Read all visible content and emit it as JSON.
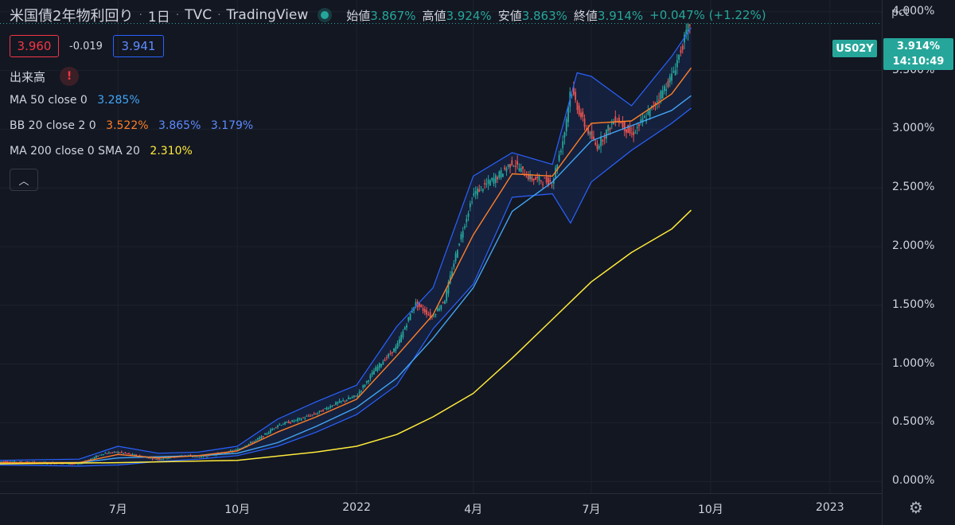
{
  "header": {
    "symbol_name": "米国債2年物利回り",
    "interval": "1日",
    "exchange": "TVC",
    "source": "TradingView",
    "ohlc": [
      {
        "label": "始値",
        "value": "3.867%"
      },
      {
        "label": "高値",
        "value": "3.924%"
      },
      {
        "label": "安値",
        "value": "3.863%"
      },
      {
        "label": "終値",
        "value": "3.914%"
      }
    ],
    "change": "+0.047% (+1.22%)"
  },
  "trade": {
    "sell": "3.960",
    "spread": "-0.019",
    "buy": "3.941"
  },
  "volume_label": "出来高",
  "volume_warning": "!",
  "indicators": [
    {
      "label": "MA 50 close 0",
      "values": [
        "3.285%"
      ],
      "colors": [
        "#42a5f5"
      ]
    },
    {
      "label": "BB 20 close 2 0",
      "values": [
        "3.522%",
        "3.865%",
        "3.179%"
      ],
      "colors": [
        "#ff7f27",
        "#2962ff",
        "#448aff"
      ]
    },
    {
      "label": "MA 200 close 0 SMA 20",
      "values": [
        "2.310%"
      ],
      "colors": [
        "#ffeb3b"
      ]
    }
  ],
  "collapse_icon": "chevron-up-icon",
  "axis_unit": "pct",
  "price_tag": {
    "symbol": "US02Y",
    "price": "3.914%",
    "countdown": "14:10:49"
  },
  "settings_icon": "gear-icon",
  "colors": {
    "background": "#131722",
    "up": "#26a69a",
    "down": "#ef5350",
    "ma50": "#42a5f5",
    "bb_basis": "#ff7f27",
    "bb_band": "#2962ff",
    "ma200": "#ffeb3b"
  },
  "chart_data": {
    "type": "line",
    "y_unit": "%",
    "ylim": [
      -0.1,
      4.1
    ],
    "y_ticks": [
      0.0,
      0.5,
      1.0,
      1.5,
      2.0,
      2.5,
      3.0,
      3.5,
      4.0
    ],
    "y_tick_labels": [
      "0.000%",
      "0.500%",
      "1.000%",
      "1.500%",
      "2.000%",
      "2.500%",
      "3.000%",
      "3.500%",
      "4.000%"
    ],
    "x_range": [
      "2021-04-01",
      "2023-02-10"
    ],
    "x_ticks": [
      {
        "date": "2021-07-01",
        "label": "7月"
      },
      {
        "date": "2021-10-01",
        "label": "10月"
      },
      {
        "date": "2022-01-01",
        "label": "2022"
      },
      {
        "date": "2022-04-01",
        "label": "4月"
      },
      {
        "date": "2022-07-01",
        "label": "7月"
      },
      {
        "date": "2022-10-01",
        "label": "10月"
      },
      {
        "date": "2023-01-01",
        "label": "2023"
      }
    ],
    "grid": true,
    "series": [
      {
        "name": "US02Y",
        "style": "candlestick",
        "points": [
          [
            "2021-04-01",
            0.17
          ],
          [
            "2021-05-01",
            0.16
          ],
          [
            "2021-06-01",
            0.15
          ],
          [
            "2021-06-20",
            0.24
          ],
          [
            "2021-07-01",
            0.25
          ],
          [
            "2021-07-20",
            0.21
          ],
          [
            "2021-08-01",
            0.19
          ],
          [
            "2021-08-20",
            0.22
          ],
          [
            "2021-09-01",
            0.21
          ],
          [
            "2021-09-20",
            0.24
          ],
          [
            "2021-10-01",
            0.27
          ],
          [
            "2021-10-20",
            0.38
          ],
          [
            "2021-11-01",
            0.48
          ],
          [
            "2021-11-15",
            0.52
          ],
          [
            "2021-12-01",
            0.58
          ],
          [
            "2021-12-15",
            0.66
          ],
          [
            "2022-01-01",
            0.73
          ],
          [
            "2022-01-15",
            0.95
          ],
          [
            "2022-02-01",
            1.15
          ],
          [
            "2022-02-15",
            1.52
          ],
          [
            "2022-02-28",
            1.4
          ],
          [
            "2022-03-10",
            1.55
          ],
          [
            "2022-03-20",
            2.0
          ],
          [
            "2022-04-01",
            2.45
          ],
          [
            "2022-04-20",
            2.6
          ],
          [
            "2022-05-01",
            2.72
          ],
          [
            "2022-05-15",
            2.58
          ],
          [
            "2022-06-01",
            2.55
          ],
          [
            "2022-06-10",
            2.95
          ],
          [
            "2022-06-15",
            3.35
          ],
          [
            "2022-06-25",
            3.05
          ],
          [
            "2022-07-05",
            2.85
          ],
          [
            "2022-07-20",
            3.1
          ],
          [
            "2022-08-01",
            2.95
          ],
          [
            "2022-08-15",
            3.15
          ],
          [
            "2022-09-01",
            3.45
          ],
          [
            "2022-09-15",
            3.9
          ]
        ]
      },
      {
        "name": "MA 50",
        "points": [
          [
            "2021-04-01",
            0.16
          ],
          [
            "2021-06-01",
            0.16
          ],
          [
            "2021-07-01",
            0.2
          ],
          [
            "2021-08-01",
            0.21
          ],
          [
            "2021-09-01",
            0.22
          ],
          [
            "2021-10-01",
            0.24
          ],
          [
            "2021-11-01",
            0.33
          ],
          [
            "2021-12-01",
            0.47
          ],
          [
            "2022-01-01",
            0.63
          ],
          [
            "2022-02-01",
            0.88
          ],
          [
            "2022-03-01",
            1.22
          ],
          [
            "2022-04-01",
            1.65
          ],
          [
            "2022-05-01",
            2.3
          ],
          [
            "2022-06-01",
            2.55
          ],
          [
            "2022-07-01",
            2.9
          ],
          [
            "2022-08-01",
            3.03
          ],
          [
            "2022-09-01",
            3.16
          ],
          [
            "2022-09-16",
            3.285
          ]
        ]
      },
      {
        "name": "BB basis",
        "points": [
          [
            "2021-04-01",
            0.16
          ],
          [
            "2021-06-01",
            0.16
          ],
          [
            "2021-07-01",
            0.23
          ],
          [
            "2021-08-01",
            0.2
          ],
          [
            "2021-09-01",
            0.22
          ],
          [
            "2021-10-01",
            0.26
          ],
          [
            "2021-11-01",
            0.42
          ],
          [
            "2021-12-01",
            0.55
          ],
          [
            "2022-01-01",
            0.7
          ],
          [
            "2022-02-01",
            1.07
          ],
          [
            "2022-03-01",
            1.42
          ],
          [
            "2022-04-01",
            2.1
          ],
          [
            "2022-05-01",
            2.62
          ],
          [
            "2022-06-01",
            2.6
          ],
          [
            "2022-07-01",
            3.05
          ],
          [
            "2022-08-01",
            3.07
          ],
          [
            "2022-09-01",
            3.3
          ],
          [
            "2022-09-16",
            3.522
          ]
        ]
      },
      {
        "name": "BB upper",
        "points": [
          [
            "2021-04-01",
            0.18
          ],
          [
            "2021-06-01",
            0.19
          ],
          [
            "2021-07-01",
            0.3
          ],
          [
            "2021-08-01",
            0.24
          ],
          [
            "2021-09-01",
            0.25
          ],
          [
            "2021-10-01",
            0.3
          ],
          [
            "2021-11-01",
            0.53
          ],
          [
            "2021-12-01",
            0.68
          ],
          [
            "2022-01-01",
            0.82
          ],
          [
            "2022-02-01",
            1.32
          ],
          [
            "2022-03-01",
            1.65
          ],
          [
            "2022-04-01",
            2.6
          ],
          [
            "2022-05-01",
            2.8
          ],
          [
            "2022-06-01",
            2.7
          ],
          [
            "2022-06-20",
            3.48
          ],
          [
            "2022-07-01",
            3.45
          ],
          [
            "2022-08-01",
            3.2
          ],
          [
            "2022-09-01",
            3.62
          ],
          [
            "2022-09-16",
            3.865
          ]
        ]
      },
      {
        "name": "BB lower",
        "points": [
          [
            "2021-04-01",
            0.14
          ],
          [
            "2021-06-01",
            0.13
          ],
          [
            "2021-07-01",
            0.14
          ],
          [
            "2021-08-01",
            0.17
          ],
          [
            "2021-09-01",
            0.19
          ],
          [
            "2021-10-01",
            0.22
          ],
          [
            "2021-11-01",
            0.3
          ],
          [
            "2021-12-01",
            0.42
          ],
          [
            "2022-01-01",
            0.57
          ],
          [
            "2022-02-01",
            0.82
          ],
          [
            "2022-03-01",
            1.3
          ],
          [
            "2022-04-01",
            1.68
          ],
          [
            "2022-05-01",
            2.42
          ],
          [
            "2022-06-01",
            2.45
          ],
          [
            "2022-06-15",
            2.2
          ],
          [
            "2022-07-01",
            2.55
          ],
          [
            "2022-08-01",
            2.82
          ],
          [
            "2022-09-01",
            3.05
          ],
          [
            "2022-09-16",
            3.179
          ]
        ]
      },
      {
        "name": "MA 200",
        "points": [
          [
            "2021-04-01",
            0.15
          ],
          [
            "2021-07-01",
            0.16
          ],
          [
            "2021-10-01",
            0.18
          ],
          [
            "2021-12-01",
            0.25
          ],
          [
            "2022-01-01",
            0.3
          ],
          [
            "2022-02-01",
            0.4
          ],
          [
            "2022-03-01",
            0.55
          ],
          [
            "2022-04-01",
            0.75
          ],
          [
            "2022-05-01",
            1.05
          ],
          [
            "2022-06-01",
            1.38
          ],
          [
            "2022-07-01",
            1.7
          ],
          [
            "2022-08-01",
            1.95
          ],
          [
            "2022-09-01",
            2.15
          ],
          [
            "2022-09-16",
            2.31
          ]
        ]
      }
    ]
  }
}
